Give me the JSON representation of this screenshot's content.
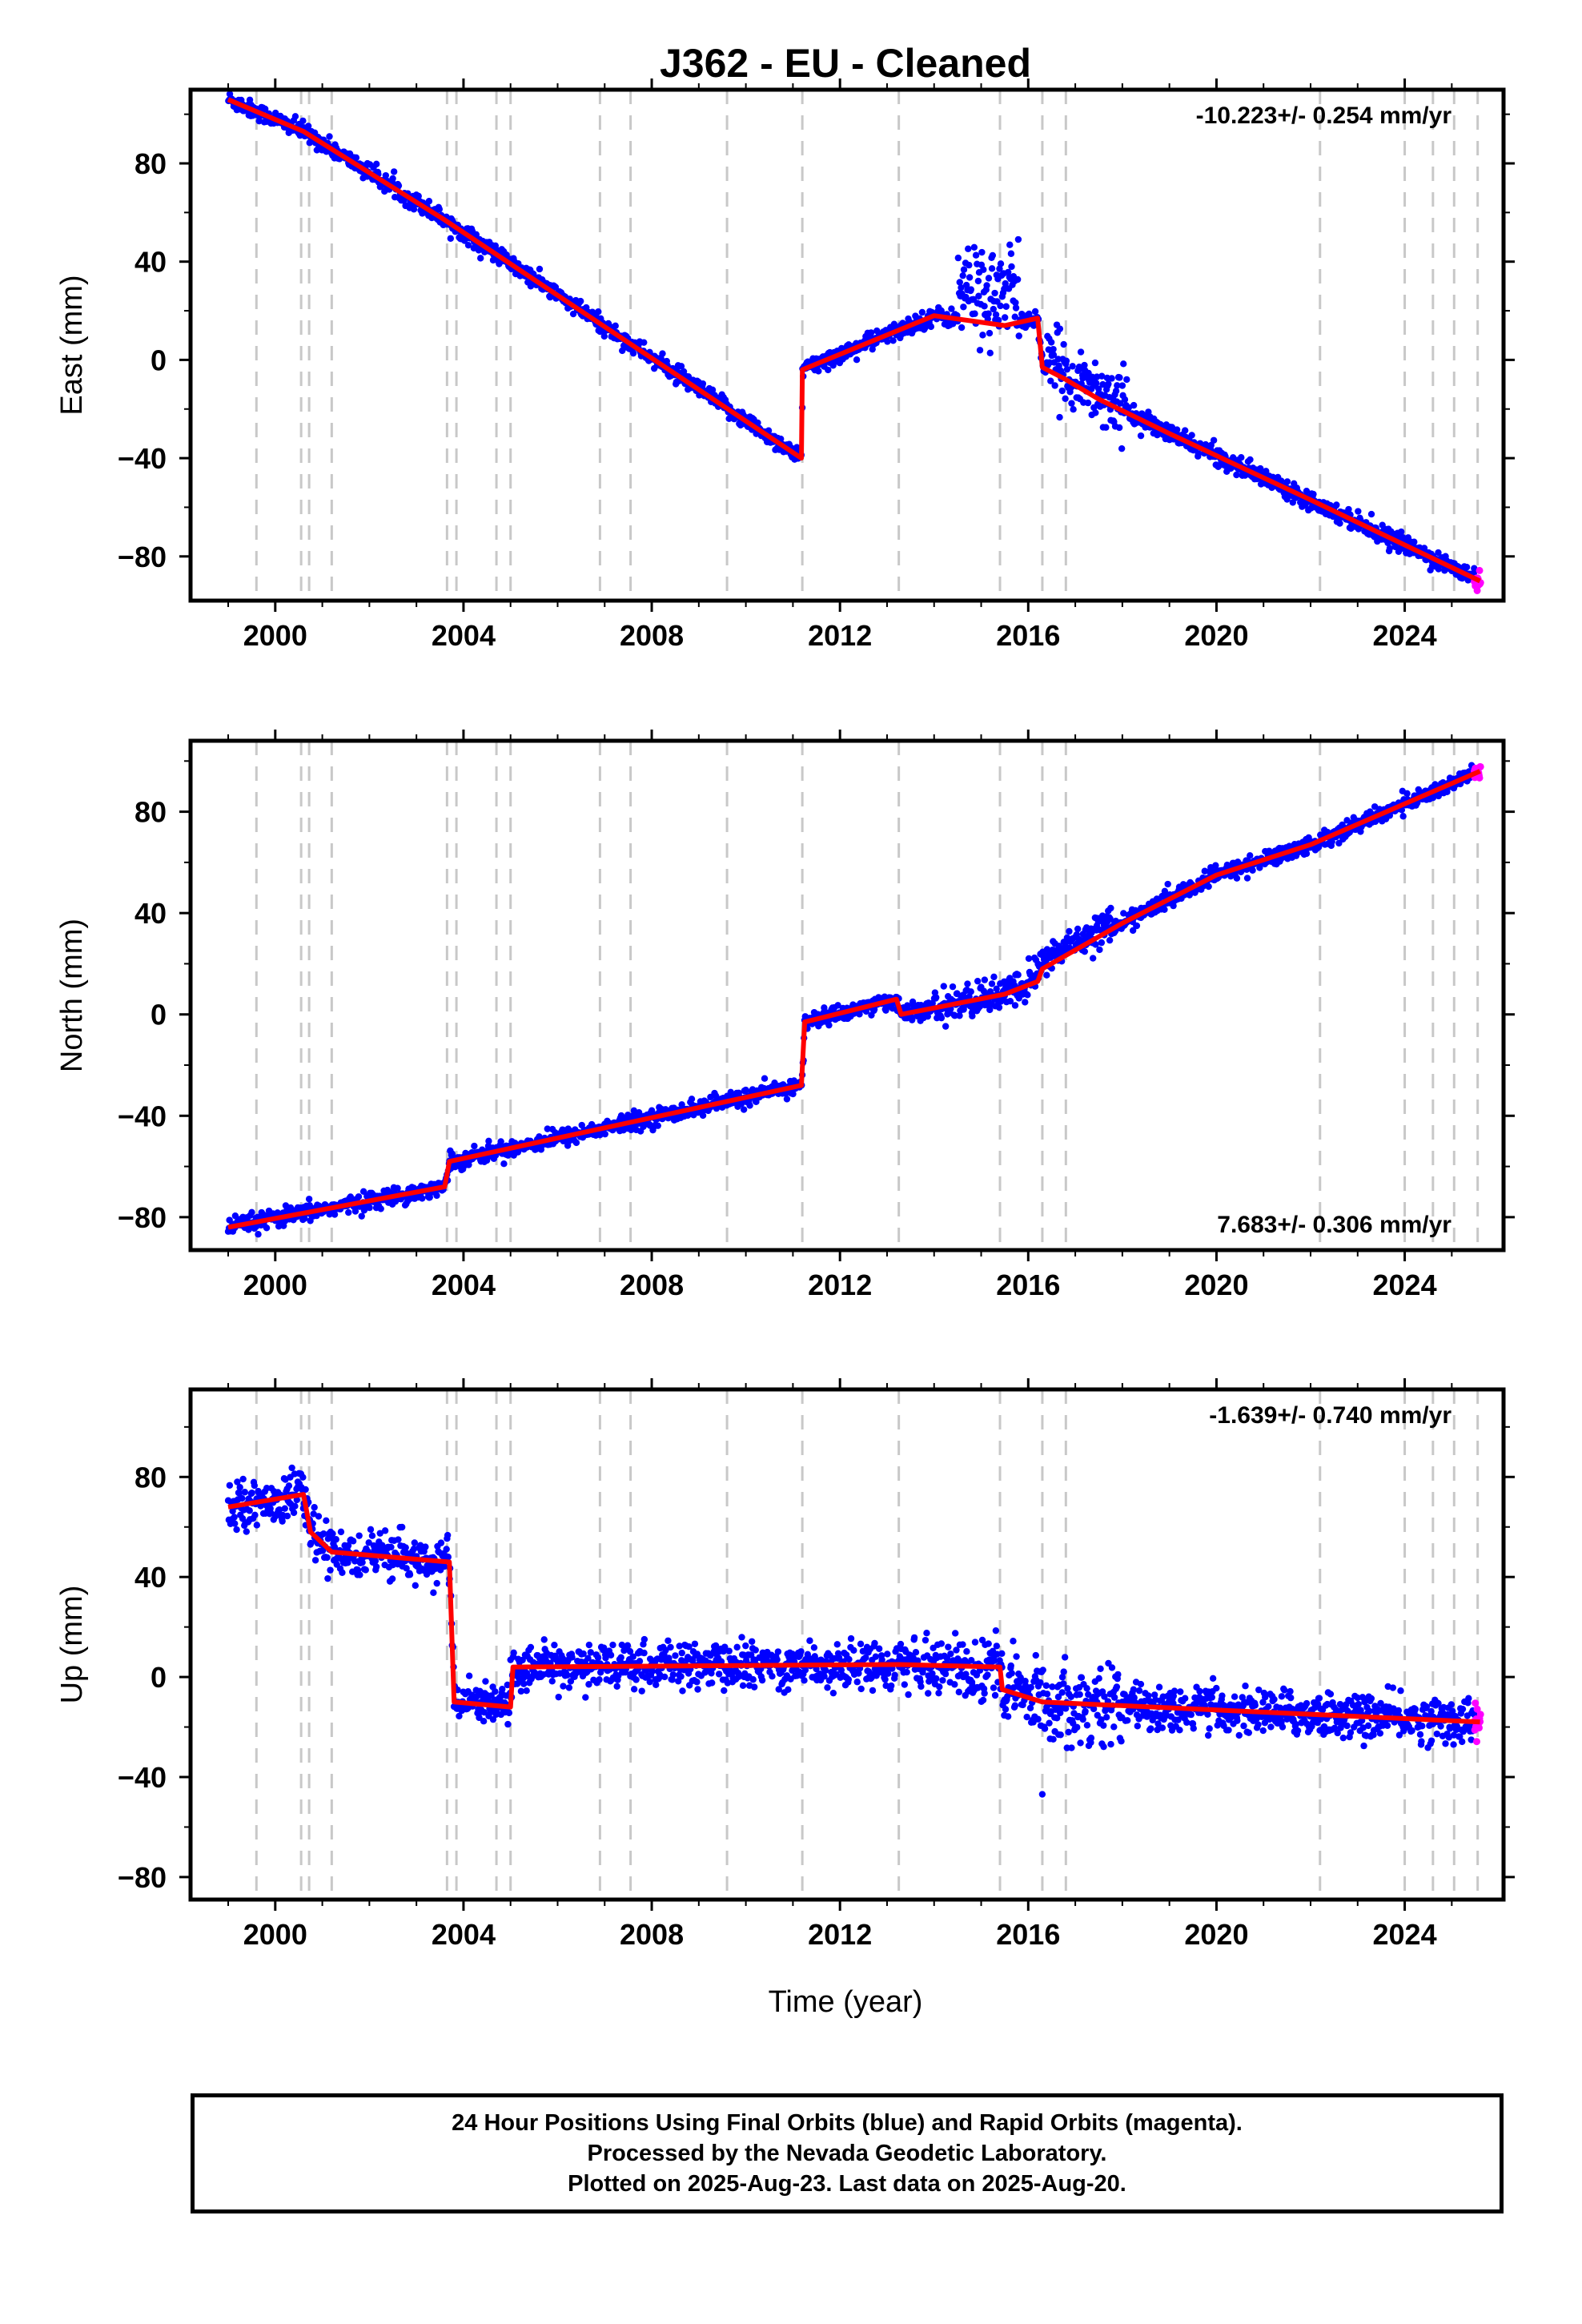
{
  "title": "J362  - EU - Cleaned",
  "xlabel": "Time (year)",
  "colors": {
    "final": "#0000ff",
    "rapid": "#ff00ff",
    "model": "#ff0000",
    "steps": "#c8c8c8"
  },
  "footer": {
    "line1": "24 Hour Positions Using Final Orbits (blue) and Rapid Orbits (magenta).",
    "line2": "Processed by the Nevada Geodetic Laboratory.",
    "line3": "Plotted on 2025-Aug-23. Last data on 2025-Aug-20."
  },
  "chart_data": [
    {
      "type": "scatter",
      "component": "east",
      "ylabel": "East (mm)",
      "rate_label": "-10.223+/- 0.254 mm/yr",
      "rate_position": "top-right",
      "xlim": [
        1998.2,
        2026.1
      ],
      "ylim": [
        -98,
        110
      ],
      "xticks": [
        2000,
        2004,
        2008,
        2012,
        2016,
        2020,
        2024
      ],
      "yticks": [
        -80,
        -40,
        0,
        40,
        80
      ],
      "steps": [
        1999.6,
        2000.55,
        2000.72,
        2001.2,
        2003.65,
        2003.85,
        2004.7,
        2005.0,
        2006.9,
        2007.55,
        2009.6,
        2011.2,
        2013.25,
        2015.4,
        2016.3,
        2016.8,
        2022.2,
        2024.0,
        2024.6,
        2025.05,
        2025.55
      ],
      "trend": [
        [
          1999.0,
          106
        ],
        [
          2000.6,
          93
        ],
        [
          2003.6,
          57
        ],
        [
          2011.18,
          -40
        ],
        [
          2011.2,
          -4
        ],
        [
          2014.0,
          18
        ],
        [
          2015.5,
          14
        ],
        [
          2016.2,
          17
        ],
        [
          2016.3,
          -3
        ],
        [
          2016.8,
          -8
        ],
        [
          2017.5,
          -16
        ],
        [
          2019.0,
          -30
        ],
        [
          2022.0,
          -57
        ],
        [
          2025.6,
          -90
        ]
      ],
      "scatter": {
        "final": {
          "noise_mm": 3.2,
          "bursts": [
            [
              2014.5,
              2015.8,
              12,
              18
            ],
            [
              2016.4,
              2018.1,
              3,
              12
            ]
          ]
        },
        "rapid_from": 2025.48
      }
    },
    {
      "type": "scatter",
      "component": "north",
      "ylabel": "North (mm)",
      "rate_label": "7.683+/- 0.306 mm/yr",
      "rate_position": "bottom-right",
      "xlim": [
        1998.2,
        2026.1
      ],
      "ylim": [
        -93,
        108
      ],
      "xticks": [
        2000,
        2004,
        2008,
        2012,
        2016,
        2020,
        2024
      ],
      "yticks": [
        -80,
        -40,
        0,
        40,
        80
      ],
      "steps": [
        1999.6,
        2000.55,
        2000.72,
        2001.2,
        2003.65,
        2003.85,
        2004.7,
        2005.0,
        2006.9,
        2007.55,
        2009.6,
        2011.2,
        2013.25,
        2015.4,
        2016.3,
        2016.8,
        2022.2,
        2024.0,
        2024.6,
        2025.05,
        2025.55
      ],
      "trend": [
        [
          1999.0,
          -84
        ],
        [
          2003.6,
          -68
        ],
        [
          2003.7,
          -58
        ],
        [
          2011.18,
          -28
        ],
        [
          2011.25,
          -3
        ],
        [
          2013.2,
          6
        ],
        [
          2013.3,
          0
        ],
        [
          2015.5,
          8
        ],
        [
          2016.2,
          13
        ],
        [
          2016.3,
          18
        ],
        [
          2018.0,
          36
        ],
        [
          2020.0,
          55
        ],
        [
          2022.0,
          67
        ],
        [
          2025.6,
          96
        ]
      ],
      "scatter": {
        "final": {
          "noise_mm": 3.0,
          "bursts": [
            [
              2014.0,
              2016.0,
              0,
              6
            ],
            [
              2016.0,
              2017.8,
              3,
              6
            ]
          ]
        },
        "rapid_from": 2025.48
      }
    },
    {
      "type": "scatter",
      "component": "up",
      "ylabel": "Up (mm)",
      "rate_label": "-1.639+/- 0.740 mm/yr",
      "rate_position": "top-right",
      "xlim": [
        1998.2,
        2026.1
      ],
      "ylim": [
        -89,
        115
      ],
      "xticks": [
        2000,
        2004,
        2008,
        2012,
        2016,
        2020,
        2024
      ],
      "yticks": [
        -80,
        -40,
        0,
        40,
        80
      ],
      "steps": [
        1999.6,
        2000.55,
        2000.72,
        2001.2,
        2003.65,
        2003.85,
        2004.7,
        2005.0,
        2006.9,
        2007.55,
        2009.6,
        2011.2,
        2013.25,
        2015.4,
        2016.3,
        2016.8,
        2022.2,
        2024.0,
        2024.6,
        2025.05,
        2025.55
      ],
      "trend": [
        [
          1999.0,
          68
        ],
        [
          2000.6,
          73
        ],
        [
          2000.75,
          58
        ],
        [
          2001.2,
          50
        ],
        [
          2003.7,
          46
        ],
        [
          2003.8,
          -10
        ],
        [
          2005.0,
          -12
        ],
        [
          2005.05,
          4
        ],
        [
          2013.25,
          5
        ],
        [
          2015.4,
          4
        ],
        [
          2015.45,
          -5
        ],
        [
          2016.3,
          -10
        ],
        [
          2025.6,
          -18
        ]
      ],
      "scatter": {
        "final": {
          "noise_mm": 8.0,
          "bursts": [
            [
              2014.4,
              2018.0,
              0,
              14
            ]
          ]
        },
        "rapid_from": 2025.48
      }
    }
  ]
}
